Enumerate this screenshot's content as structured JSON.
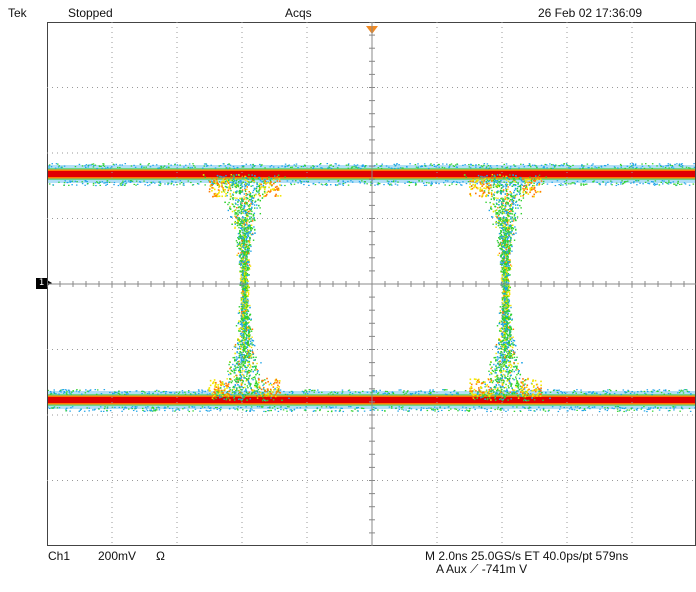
{
  "status_bar": {
    "brand": "Tek",
    "acquisition_state": "Stopped",
    "acquisition_label": "Acqs",
    "datetime": "26 Feb 02 17:36:09"
  },
  "channel_marker": {
    "label": "1"
  },
  "readout": {
    "channel": "Ch1",
    "scale": "200mV",
    "coupling": "Ω",
    "timebase": "M 2.0ns 25.0GS/s ET 40.0ps/pt 579ns",
    "trigger": "A  Aux  ⟋  -741m  V"
  },
  "display": {
    "graticule_divisions_x": 10,
    "graticule_divisions_y": 8,
    "trace_colors": [
      "#e00000",
      "#ff7a00",
      "#f2e600",
      "#2fd12f",
      "#1fa4e8"
    ],
    "trigger_marker_color": "#f08a24"
  }
}
